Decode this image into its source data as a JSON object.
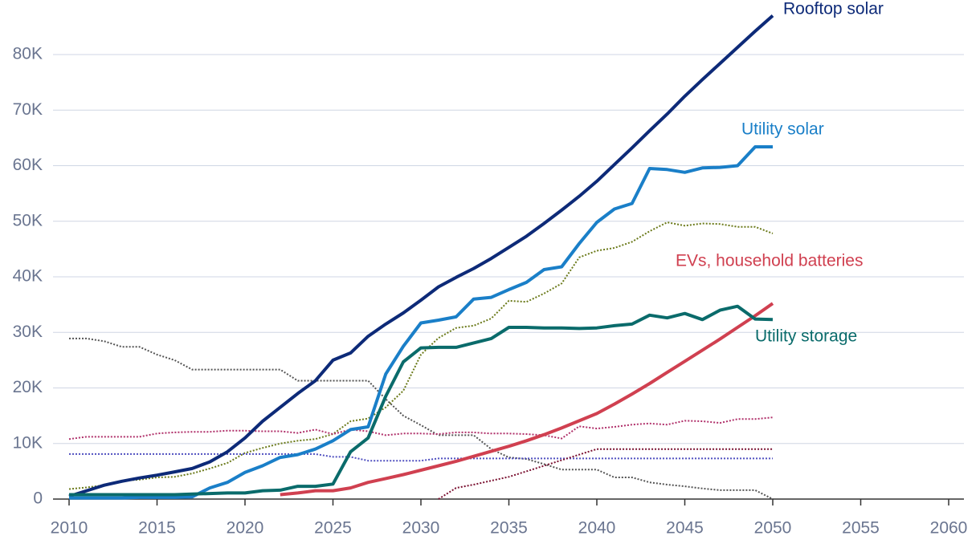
{
  "chart_data": {
    "type": "line",
    "x": [
      2010,
      2011,
      2012,
      2013,
      2014,
      2015,
      2016,
      2017,
      2018,
      2019,
      2020,
      2021,
      2022,
      2023,
      2024,
      2025,
      2026,
      2027,
      2028,
      2029,
      2030,
      2031,
      2032,
      2033,
      2034,
      2035,
      2036,
      2037,
      2038,
      2039,
      2040,
      2041,
      2042,
      2043,
      2044,
      2045,
      2046,
      2047,
      2048,
      2049,
      2050
    ],
    "xlim": [
      2010,
      2060
    ],
    "xticks": [
      2010,
      2015,
      2020,
      2025,
      2030,
      2035,
      2040,
      2045,
      2050,
      2055,
      2060
    ],
    "ylim": [
      0,
      90000
    ],
    "yticks": [
      0,
      {
        "value": 10000,
        "label": "10K"
      },
      {
        "value": 20000,
        "label": "20K"
      },
      {
        "value": 30000,
        "label": "30K"
      },
      {
        "value": 40000,
        "label": "40K"
      },
      {
        "value": 50000,
        "label": "50K"
      },
      {
        "value": 60000,
        "label": "60K"
      },
      {
        "value": 70000,
        "label": "70K"
      },
      {
        "value": 80000,
        "label": "80K"
      }
    ],
    "grid": true,
    "series": [
      {
        "color": "#6b7a1a",
        "dash": true,
        "values": [
          1800,
          2100,
          2500,
          3300,
          3500,
          3900,
          4000,
          4600,
          5500,
          6500,
          8300,
          9200,
          10000,
          10500,
          10800,
          11700,
          14000,
          14500,
          16500,
          19500,
          26000,
          29000,
          30800,
          31200,
          32500,
          35700,
          35500,
          37000,
          38800,
          43500,
          44700,
          45200,
          46300,
          48200,
          49800,
          49200,
          49600,
          49500,
          49000,
          49000,
          47800
        ]
      },
      {
        "color": "#555555",
        "dash": true,
        "values": [
          28900,
          28900,
          28400,
          27400,
          27400,
          26000,
          25000,
          23300,
          23300,
          23300,
          23300,
          23300,
          23300,
          21300,
          21300,
          21300,
          21300,
          21300,
          18000,
          15000,
          13300,
          11500,
          11500,
          11500,
          9000,
          7500,
          7200,
          6300,
          5300,
          5300,
          5300,
          3900,
          3900,
          3000,
          2600,
          2300,
          1900,
          1600,
          1600,
          1600,
          0
        ]
      },
      {
        "color": "#b0306a",
        "dash": true,
        "values": [
          10800,
          11200,
          11200,
          11200,
          11200,
          11800,
          12000,
          12100,
          12100,
          12300,
          12300,
          12200,
          12200,
          11900,
          12500,
          11700,
          12500,
          12200,
          11500,
          11800,
          11800,
          11700,
          12000,
          12000,
          11800,
          11800,
          11700,
          11500,
          10900,
          13100,
          12700,
          13000,
          13400,
          13600,
          13400,
          14100,
          14000,
          13700,
          14400,
          14400,
          14700
        ]
      },
      {
        "color": "#5050c0",
        "dash": true,
        "values": [
          8100,
          8100,
          8100,
          8100,
          8100,
          8100,
          8100,
          8100,
          8100,
          8100,
          8100,
          8100,
          8100,
          8100,
          8100,
          7600,
          7600,
          6900,
          6900,
          6900,
          6900,
          7300,
          7300,
          7300,
          7300,
          7300,
          7300,
          7300,
          7300,
          7300,
          7300,
          7300,
          7300,
          7300,
          7300,
          7300,
          7300,
          7300,
          7300,
          7300,
          7300
        ]
      },
      {
        "color": "#7a1030",
        "dash": true,
        "values": [
          null,
          null,
          null,
          null,
          null,
          null,
          null,
          null,
          null,
          null,
          null,
          null,
          null,
          null,
          null,
          null,
          null,
          null,
          null,
          null,
          null,
          0,
          2000,
          2600,
          3300,
          4000,
          5000,
          6000,
          7000,
          8000,
          9000,
          9000,
          9000,
          9000,
          9000,
          9000,
          9000,
          9000,
          9000,
          9000,
          9000
        ]
      },
      {
        "name": "Rooftop solar",
        "color": "#0d2a78",
        "values": [
          500,
          1500,
          2500,
          3200,
          3800,
          4300,
          4900,
          5500,
          6700,
          8500,
          11000,
          14000,
          16500,
          19000,
          21300,
          25000,
          26300,
          29300,
          31500,
          33500,
          35800,
          38200,
          39900,
          41500,
          43300,
          45300,
          47300,
          49600,
          52000,
          54500,
          57200,
          60200,
          63200,
          66300,
          69300,
          72500,
          75500,
          78400,
          81300,
          84200,
          87000
        ]
      },
      {
        "name": "Utility solar",
        "color": "#1a7fc8",
        "values": [
          200,
          200,
          200,
          200,
          300,
          300,
          300,
          400,
          2000,
          3000,
          4800,
          6000,
          7500,
          8000,
          9000,
          10500,
          12500,
          13000,
          22500,
          27500,
          31700,
          32200,
          32800,
          36000,
          36300,
          37700,
          39000,
          41300,
          41800,
          46000,
          49800,
          52200,
          53200,
          59500,
          59300,
          58800,
          59600,
          59700,
          60000,
          63400,
          63400
        ]
      },
      {
        "name": "EVs, household batteries",
        "color": "#d04050",
        "values": [
          null,
          null,
          null,
          null,
          null,
          null,
          null,
          null,
          null,
          null,
          null,
          null,
          800,
          1100,
          1500,
          1500,
          2000,
          3000,
          3700,
          4400,
          5200,
          6000,
          6800,
          7700,
          8600,
          9500,
          10500,
          11600,
          12800,
          14100,
          15400,
          17100,
          18900,
          20800,
          22800,
          24800,
          26800,
          28800,
          30900,
          33000,
          35200
        ]
      },
      {
        "name": "Utility storage",
        "color": "#0a6b6b",
        "values": [
          800,
          800,
          800,
          800,
          800,
          800,
          800,
          900,
          1000,
          1100,
          1100,
          1500,
          1600,
          2300,
          2300,
          2700,
          8500,
          11000,
          18500,
          24700,
          27200,
          27300,
          27300,
          28100,
          28900,
          30900,
          30900,
          30800,
          30800,
          30700,
          30800,
          31200,
          31500,
          33100,
          32600,
          33400,
          32300,
          34000,
          34700,
          32400,
          32300
        ]
      }
    ]
  }
}
